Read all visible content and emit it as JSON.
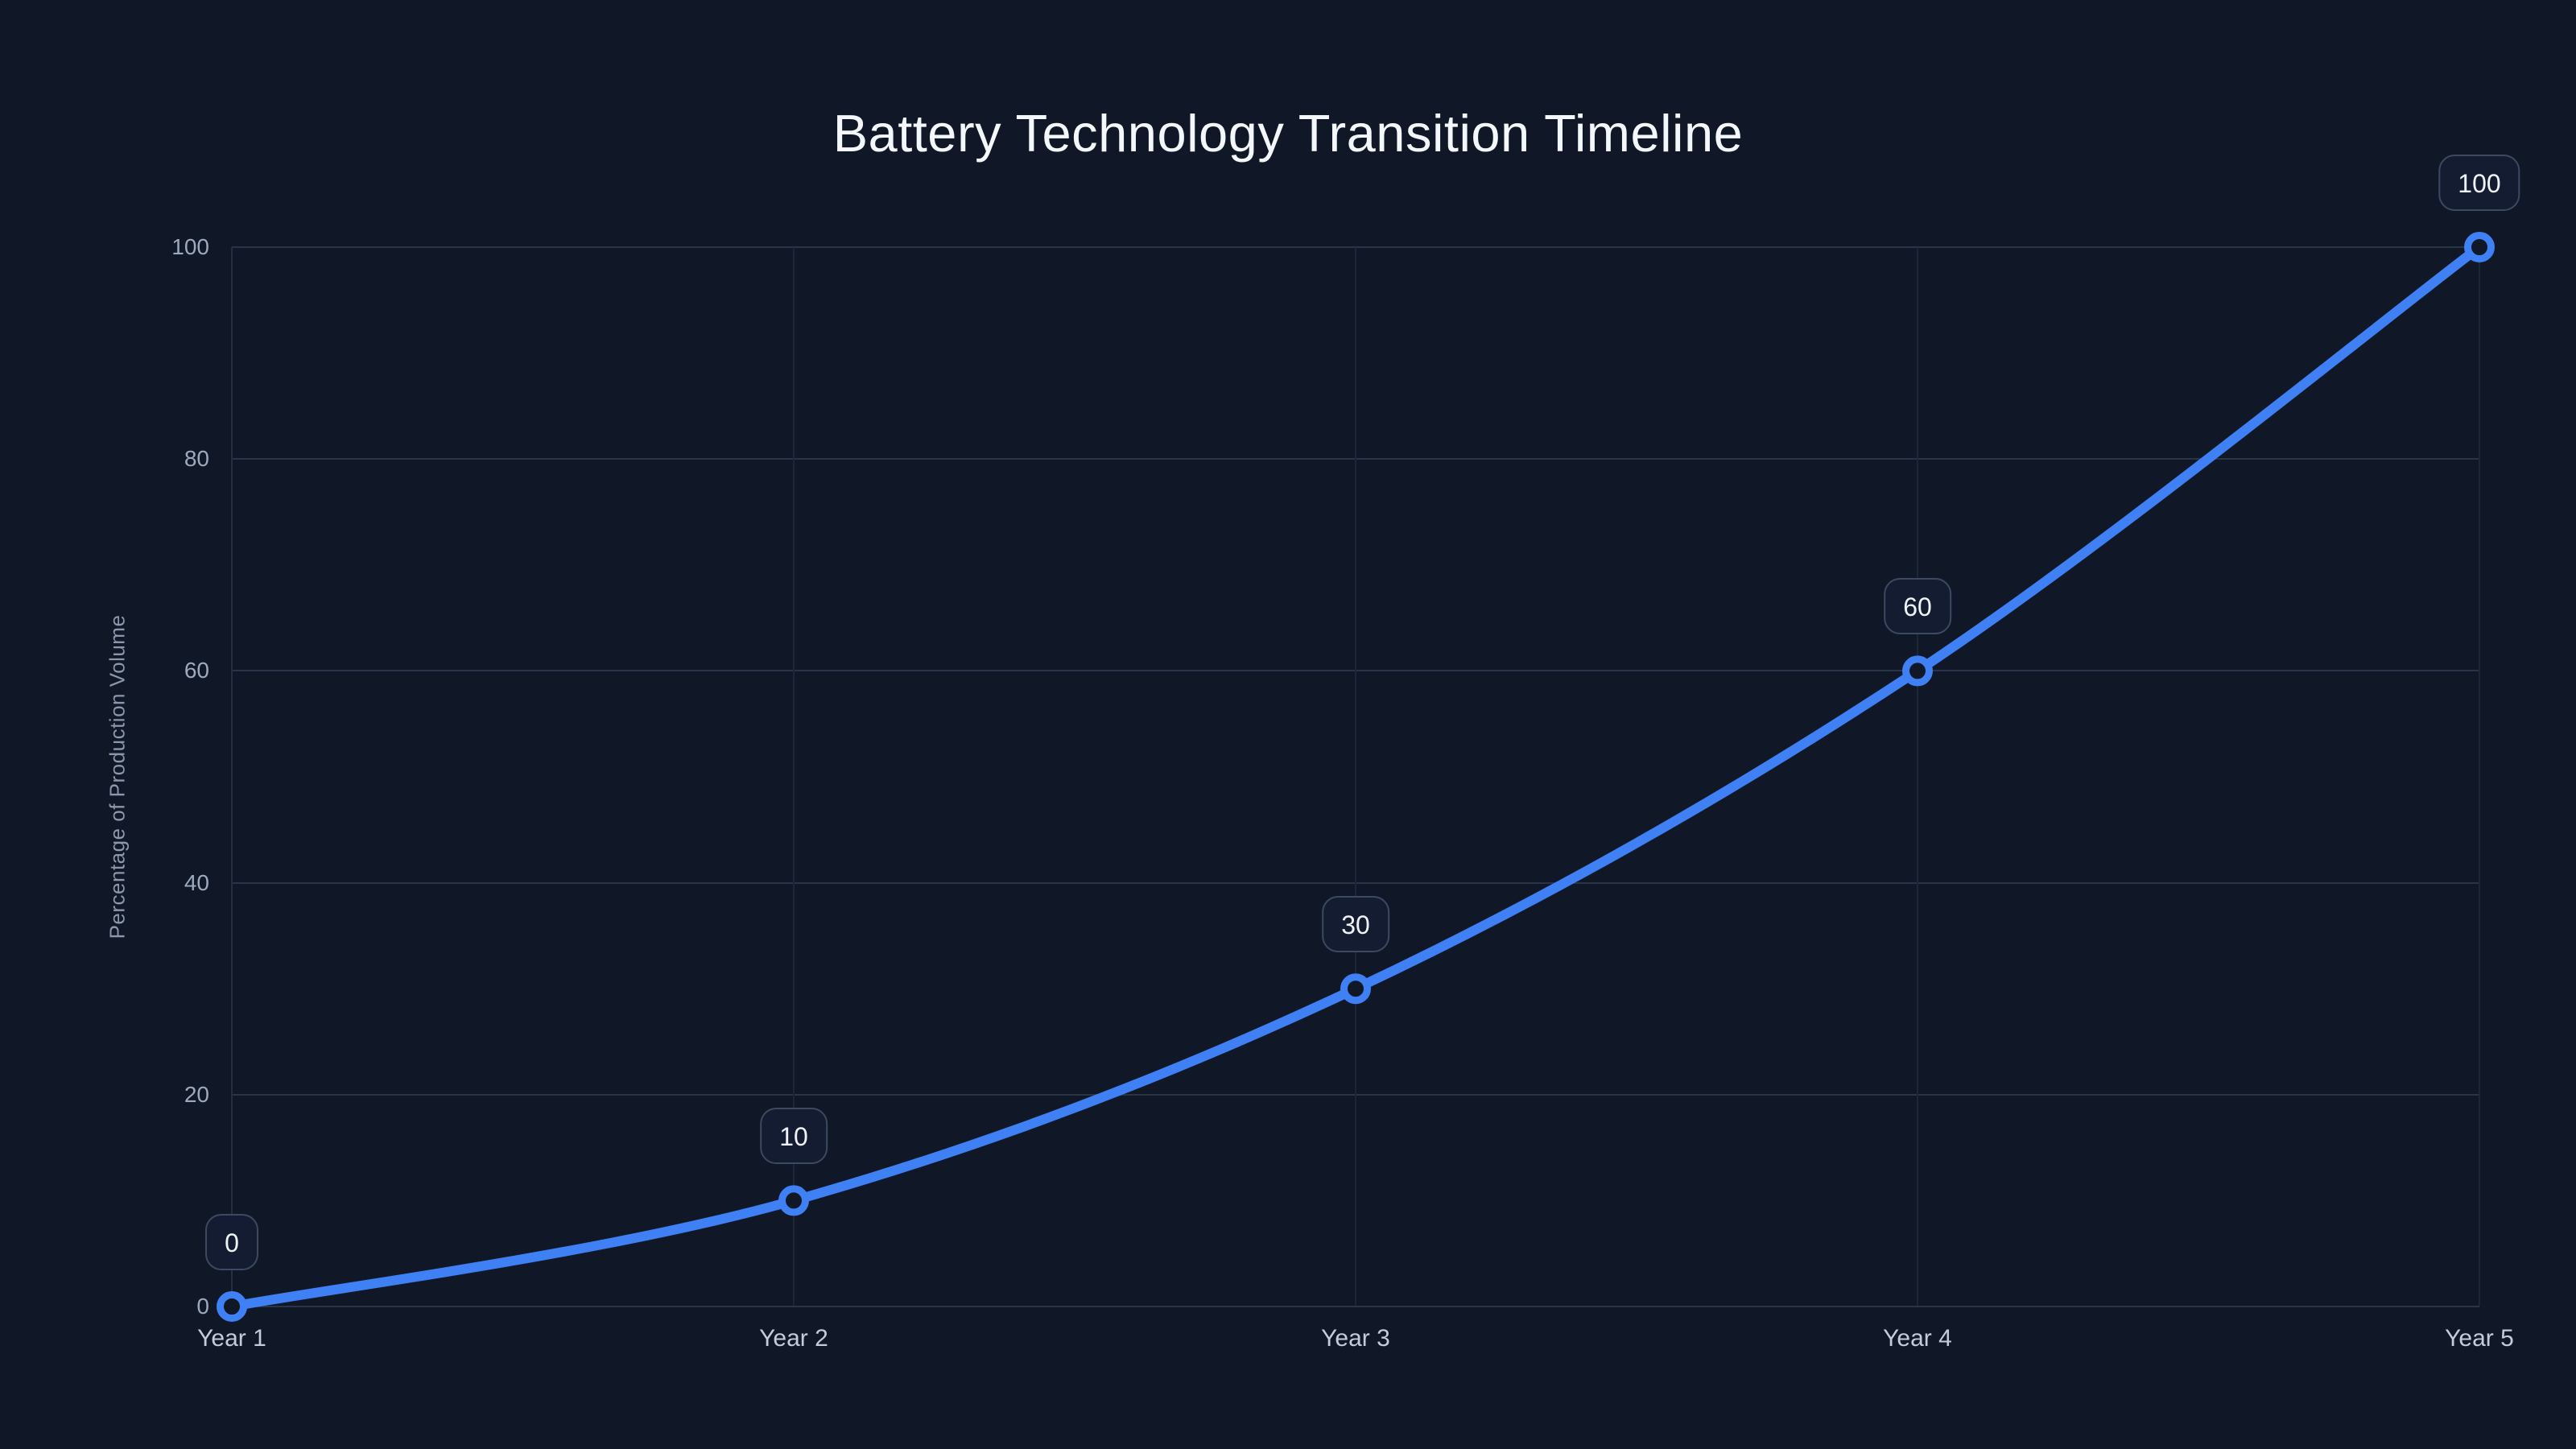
{
  "theme": {
    "background": "#101827",
    "line_color": "#3f80f5",
    "marker_ring_color": "#3f80f5",
    "marker_fill": "#101827",
    "grid_color": "#2a3448",
    "grid_vertical_color": "#1c2639",
    "title_color": "#f4f7fb",
    "tick_color": "#9da9be",
    "x_tick_color": "#c3ccdb",
    "axis_label_color": "#8c97ac",
    "label_box_bg": "#131c30",
    "label_box_border": "#3d4961",
    "label_text_color": "#eff3f9"
  },
  "chart_data": {
    "type": "line",
    "title": "Battery Technology Transition Timeline",
    "xlabel": "",
    "ylabel": "Percentage of Production Volume",
    "categories": [
      "Year 1",
      "Year 2",
      "Year 3",
      "Year 4",
      "Year 5"
    ],
    "series": [
      {
        "name": "Percentage of Production Volume",
        "values": [
          0,
          10,
          30,
          60,
          100
        ],
        "point_labels": [
          "0",
          "10",
          "30",
          "60",
          "100"
        ]
      }
    ],
    "yticks": [
      0,
      20,
      40,
      60,
      80,
      100
    ],
    "ylim": [
      0,
      100
    ],
    "grid": true,
    "legend_position": "none",
    "curve": "smooth"
  }
}
